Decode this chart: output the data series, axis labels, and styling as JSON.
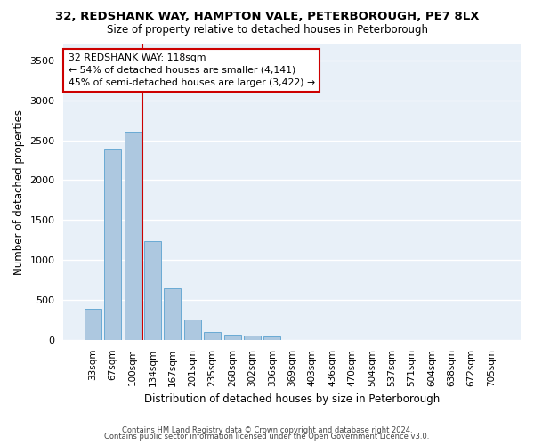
{
  "title_line1": "32, REDSHANK WAY, HAMPTON VALE, PETERBOROUGH, PE7 8LX",
  "title_line2": "Size of property relative to detached houses in Peterborough",
  "xlabel": "Distribution of detached houses by size in Peterborough",
  "ylabel": "Number of detached properties",
  "footer_line1": "Contains HM Land Registry data © Crown copyright and database right 2024.",
  "footer_line2": "Contains public sector information licensed under the Open Government Licence v3.0.",
  "categories": [
    "33sqm",
    "67sqm",
    "100sqm",
    "134sqm",
    "167sqm",
    "201sqm",
    "235sqm",
    "268sqm",
    "302sqm",
    "336sqm",
    "369sqm",
    "403sqm",
    "436sqm",
    "470sqm",
    "504sqm",
    "537sqm",
    "571sqm",
    "604sqm",
    "638sqm",
    "672sqm",
    "705sqm"
  ],
  "values": [
    390,
    2400,
    2610,
    1240,
    640,
    260,
    95,
    60,
    55,
    40,
    0,
    0,
    0,
    0,
    0,
    0,
    0,
    0,
    0,
    0,
    0
  ],
  "bar_color": "#adc8e0",
  "bar_edge_color": "#6aaad4",
  "background_color": "#e8f0f8",
  "grid_color": "#ffffff",
  "red_line_x": 2.5,
  "annotation_text": "32 REDSHANK WAY: 118sqm\n← 54% of detached houses are smaller (4,141)\n45% of semi-detached houses are larger (3,422) →",
  "annotation_box_color": "#ffffff",
  "annotation_box_edge": "#cc0000",
  "red_line_color": "#cc0000",
  "ylim": [
    0,
    3700
  ],
  "yticks": [
    0,
    500,
    1000,
    1500,
    2000,
    2500,
    3000,
    3500
  ]
}
